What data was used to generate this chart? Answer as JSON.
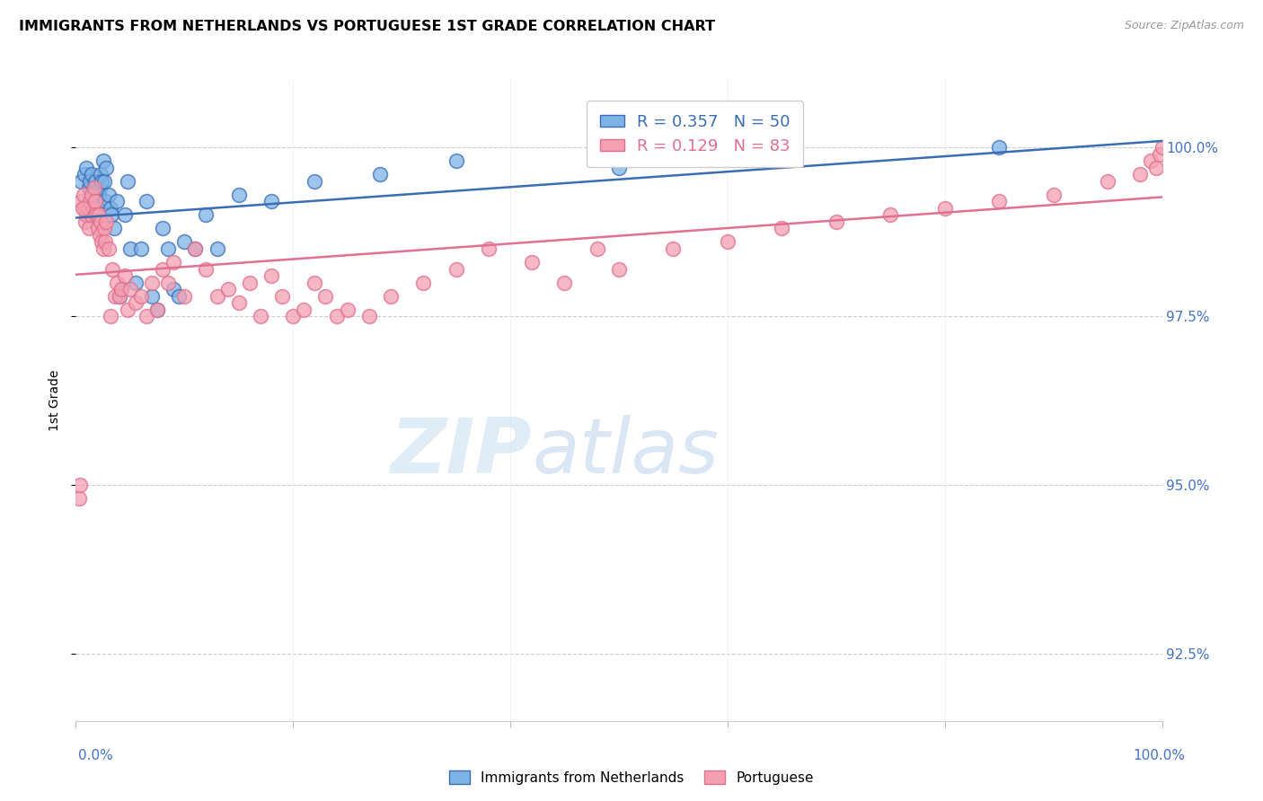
{
  "title": "IMMIGRANTS FROM NETHERLANDS VS PORTUGUESE 1ST GRADE CORRELATION CHART",
  "source": "Source: ZipAtlas.com",
  "ylabel": "1st Grade",
  "yticks": [
    92.5,
    95.0,
    97.5,
    100.0
  ],
  "ytick_labels": [
    "92.5%",
    "95.0%",
    "97.5%",
    "100.0%"
  ],
  "xrange": [
    0.0,
    1.0
  ],
  "yrange": [
    91.5,
    101.0
  ],
  "blue_R": 0.357,
  "blue_N": 50,
  "pink_R": 0.129,
  "pink_N": 83,
  "blue_color": "#7EB3E8",
  "pink_color": "#F4A0B0",
  "blue_line_color": "#3B6DB3",
  "pink_line_color": "#E07090",
  "legend_label_blue": "Immigrants from Netherlands",
  "legend_label_pink": "Portuguese",
  "watermark_zip": "ZIP",
  "watermark_atlas": "atlas",
  "blue_x": [
    0.005,
    0.008,
    0.01,
    0.012,
    0.013,
    0.015,
    0.016,
    0.017,
    0.018,
    0.019,
    0.02,
    0.021,
    0.022,
    0.023,
    0.024,
    0.025,
    0.026,
    0.027,
    0.028,
    0.03,
    0.032,
    0.033,
    0.035,
    0.038,
    0.04,
    0.042,
    0.045,
    0.048,
    0.05,
    0.055,
    0.06,
    0.065,
    0.07,
    0.075,
    0.08,
    0.085,
    0.09,
    0.095,
    0.1,
    0.11,
    0.12,
    0.13,
    0.15,
    0.18,
    0.22,
    0.28,
    0.35,
    0.5,
    0.65,
    0.85
  ],
  "blue_y": [
    99.5,
    99.6,
    99.7,
    99.4,
    99.5,
    99.6,
    99.3,
    99.4,
    99.5,
    99.2,
    99.1,
    99.3,
    99.4,
    99.6,
    99.5,
    99.8,
    99.5,
    99.2,
    99.7,
    99.3,
    99.1,
    99.0,
    98.8,
    99.2,
    97.8,
    97.9,
    99.0,
    99.5,
    98.5,
    98.0,
    98.5,
    99.2,
    97.8,
    97.6,
    98.8,
    98.5,
    97.9,
    97.8,
    98.6,
    98.5,
    99.0,
    98.5,
    99.3,
    99.2,
    99.5,
    99.6,
    99.8,
    99.7,
    100.0,
    100.0
  ],
  "pink_x": [
    0.005,
    0.007,
    0.008,
    0.009,
    0.01,
    0.011,
    0.012,
    0.013,
    0.014,
    0.015,
    0.016,
    0.017,
    0.018,
    0.019,
    0.02,
    0.021,
    0.022,
    0.023,
    0.024,
    0.025,
    0.026,
    0.027,
    0.028,
    0.03,
    0.032,
    0.034,
    0.036,
    0.038,
    0.04,
    0.042,
    0.045,
    0.048,
    0.05,
    0.055,
    0.06,
    0.065,
    0.07,
    0.075,
    0.08,
    0.085,
    0.09,
    0.1,
    0.11,
    0.12,
    0.13,
    0.14,
    0.15,
    0.16,
    0.17,
    0.18,
    0.19,
    0.2,
    0.21,
    0.22,
    0.23,
    0.24,
    0.25,
    0.27,
    0.29,
    0.32,
    0.35,
    0.38,
    0.42,
    0.45,
    0.48,
    0.5,
    0.55,
    0.6,
    0.65,
    0.7,
    0.75,
    0.8,
    0.85,
    0.9,
    0.95,
    0.98,
    0.99,
    0.995,
    0.998,
    1.0,
    0.003,
    0.004,
    0.006
  ],
  "pink_y": [
    99.2,
    99.3,
    99.1,
    98.9,
    99.0,
    99.1,
    98.8,
    99.2,
    99.0,
    99.3,
    99.1,
    99.4,
    99.2,
    99.0,
    98.8,
    99.0,
    98.7,
    98.9,
    98.6,
    98.5,
    98.8,
    98.6,
    98.9,
    98.5,
    97.5,
    98.2,
    97.8,
    98.0,
    97.8,
    97.9,
    98.1,
    97.6,
    97.9,
    97.7,
    97.8,
    97.5,
    98.0,
    97.6,
    98.2,
    98.0,
    98.3,
    97.8,
    98.5,
    98.2,
    97.8,
    97.9,
    97.7,
    98.0,
    97.5,
    98.1,
    97.8,
    97.5,
    97.6,
    98.0,
    97.8,
    97.5,
    97.6,
    97.5,
    97.8,
    98.0,
    98.2,
    98.5,
    98.3,
    98.0,
    98.5,
    98.2,
    98.5,
    98.6,
    98.8,
    98.9,
    99.0,
    99.1,
    99.2,
    99.3,
    99.5,
    99.6,
    99.8,
    99.7,
    99.9,
    100.0,
    94.8,
    95.0,
    99.1
  ]
}
